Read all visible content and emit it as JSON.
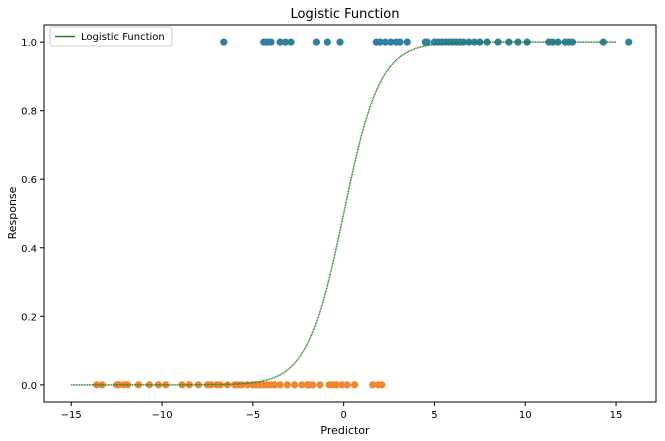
{
  "chart_data": {
    "type": "scatter",
    "title": "Logistic Function",
    "xlabel": "Predictor",
    "ylabel": "Response",
    "xlim": [
      -16.5,
      17.2
    ],
    "ylim": [
      -0.05,
      1.05
    ],
    "xticks": [
      -15,
      -10,
      -5,
      0,
      5,
      10,
      15
    ],
    "yticks": [
      0.0,
      0.2,
      0.4,
      0.6,
      0.8,
      1.0
    ],
    "xtick_labels": [
      "−15",
      "−10",
      "−5",
      "0",
      "5",
      "10",
      "15"
    ],
    "ytick_labels": [
      "0.0",
      "0.2",
      "0.4",
      "0.6",
      "0.8",
      "1.0"
    ],
    "grid": false,
    "legend": {
      "position": "top-left",
      "entries": [
        "Logistic Function"
      ]
    },
    "colors": {
      "class_1": "#2f7f9f",
      "class_0": "#f0872e",
      "curve": "#2a7a2a"
    },
    "curve": {
      "name": "Logistic Function",
      "x_range": [
        -15,
        15
      ],
      "steps": 300
    },
    "points_response_1": [
      -6.6,
      -4.4,
      -4.2,
      -4.0,
      -3.5,
      -3.2,
      -2.9,
      -1.5,
      -0.9,
      -0.2,
      1.8,
      2.0,
      2.3,
      2.6,
      2.9,
      3.1,
      3.5,
      4.5,
      4.6,
      5.0,
      5.2,
      5.4,
      5.6,
      5.8,
      6.0,
      6.2,
      6.4,
      6.6,
      6.9,
      7.2,
      7.5,
      7.9,
      8.5,
      9.1,
      9.6,
      10.1,
      11.3,
      11.5,
      11.8,
      12.2,
      12.4,
      12.6,
      14.3,
      15.7
    ],
    "points_response_0": [
      -13.6,
      -13.3,
      -12.5,
      -12.4,
      -12.1,
      -11.9,
      -11.3,
      -10.7,
      -10.2,
      -9.8,
      -8.9,
      -8.5,
      -8.0,
      -7.5,
      -7.3,
      -7.0,
      -6.8,
      -6.4,
      -6.0,
      -5.8,
      -5.6,
      -5.3,
      -5.0,
      -4.8,
      -4.6,
      -4.4,
      -4.2,
      -4.0,
      -3.8,
      -3.5,
      -3.1,
      -2.7,
      -2.3,
      -2.0,
      -1.9,
      -1.7,
      -1.3,
      -0.8,
      -0.6,
      -0.4,
      -0.1,
      0.2,
      0.6,
      1.6,
      1.9,
      2.1
    ]
  }
}
